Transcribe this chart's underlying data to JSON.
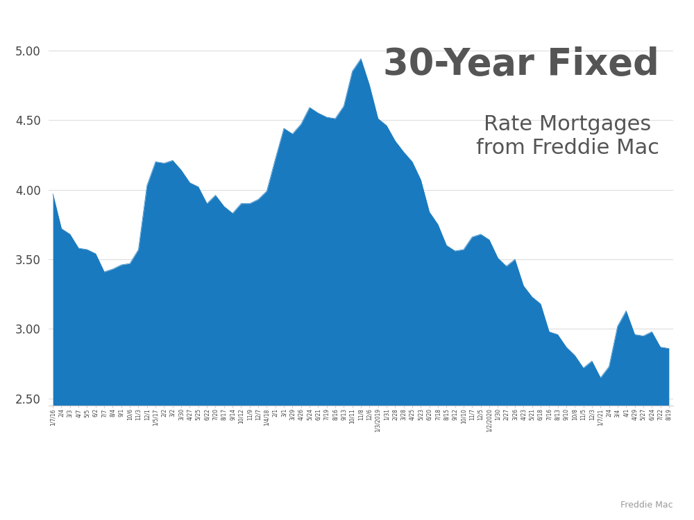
{
  "title_line1": "30-Year Fixed",
  "title_line2": "Rate Mortgages\nfrom Freddie Mac",
  "source_text": "Freddie Mac",
  "fill_color": "#1a7abf",
  "background_color": "#ffffff",
  "title_color": "#555555",
  "source_color": "#999999",
  "yticks": [
    2.5,
    3.0,
    3.5,
    4.0,
    4.5,
    5.0
  ],
  "ylim": [
    2.45,
    5.1
  ],
  "dates": [
    "1/7/16",
    "2/4",
    "3/3",
    "4/7",
    "5/5",
    "6/2",
    "7/7",
    "8/4",
    "9/1",
    "10/6",
    "11/3",
    "12/1",
    "1/5/17",
    "2/2",
    "3/2",
    "3/30",
    "4/27",
    "5/25",
    "6/22",
    "7/20",
    "8/17",
    "9/14",
    "10/12",
    "11/9",
    "12/7",
    "1/4/18",
    "2/1",
    "3/1",
    "3/29",
    "4/26",
    "5/24",
    "6/21",
    "7/19",
    "8/16",
    "9/13",
    "10/11",
    "11/8",
    "12/6",
    "1/3/19",
    "1/31",
    "2/28",
    "3/28",
    "4/25",
    "5/23",
    "6/20",
    "7/18",
    "8/15",
    "9/12",
    "10/10",
    "11/7",
    "12/5",
    "1/2/2020",
    "1/30",
    "2/27",
    "3/26",
    "4/23",
    "5/21",
    "6/18",
    "7/16",
    "8/13",
    "9/10",
    "10/8",
    "11/5",
    "12/3",
    "1/7/21",
    "2/4",
    "3/4",
    "4/1",
    "4/29",
    "5/27",
    "6/24",
    "7/22",
    "8/19"
  ],
  "values": [
    3.97,
    3.72,
    3.68,
    3.58,
    3.57,
    3.54,
    3.41,
    3.43,
    3.46,
    3.47,
    3.57,
    4.03,
    4.2,
    4.19,
    4.21,
    4.14,
    4.05,
    4.02,
    3.9,
    3.96,
    3.88,
    3.83,
    3.9,
    3.9,
    3.93,
    3.99,
    4.22,
    4.44,
    4.4,
    4.47,
    4.59,
    4.55,
    4.52,
    4.51,
    4.6,
    4.85,
    4.94,
    4.75,
    4.51,
    4.46,
    4.35,
    4.27,
    4.2,
    4.07,
    3.84,
    3.75,
    3.6,
    3.56,
    3.57,
    3.66,
    3.68,
    3.64,
    3.51,
    3.45,
    3.5,
    3.31,
    3.23,
    3.18,
    2.98,
    2.96,
    2.87,
    2.81,
    2.72,
    2.77,
    2.65,
    2.73,
    3.02,
    3.13,
    2.96,
    2.95,
    2.98,
    2.87,
    2.86
  ],
  "xtick_labels": [
    "1/7/16",
    "2/4",
    "3/3",
    "4/7",
    "5/5",
    "6/2",
    "7/7",
    "8/4",
    "9/1",
    "10/6",
    "11/3",
    "12/1",
    "1/5/17",
    "2/2",
    "3/2",
    "3/30",
    "4/27",
    "5/25",
    "6/22",
    "7/20",
    "8/17",
    "9/14",
    "10/12",
    "11/9",
    "12/7",
    "1/4/18",
    "2/1",
    "3/1",
    "3/29",
    "4/26",
    "5/24",
    "6/21",
    "7/19",
    "8/16",
    "9/13",
    "10/11",
    "11/8",
    "12/6",
    "1/3/2019",
    "1/31",
    "2/28",
    "3/28",
    "4/25",
    "5/23",
    "6/20",
    "7/18",
    "8/15",
    "9/12",
    "10/10",
    "11/7",
    "12/5",
    "1/2/2020",
    "1/30",
    "2/27",
    "3/26",
    "4/23",
    "5/21",
    "6/18",
    "7/16",
    "8/13",
    "9/10",
    "10/8",
    "11/5",
    "12/3",
    "1/7/21",
    "2/4",
    "3/4",
    "4/1",
    "4/29",
    "5/27",
    "6/24",
    "7/22",
    "8/19"
  ]
}
